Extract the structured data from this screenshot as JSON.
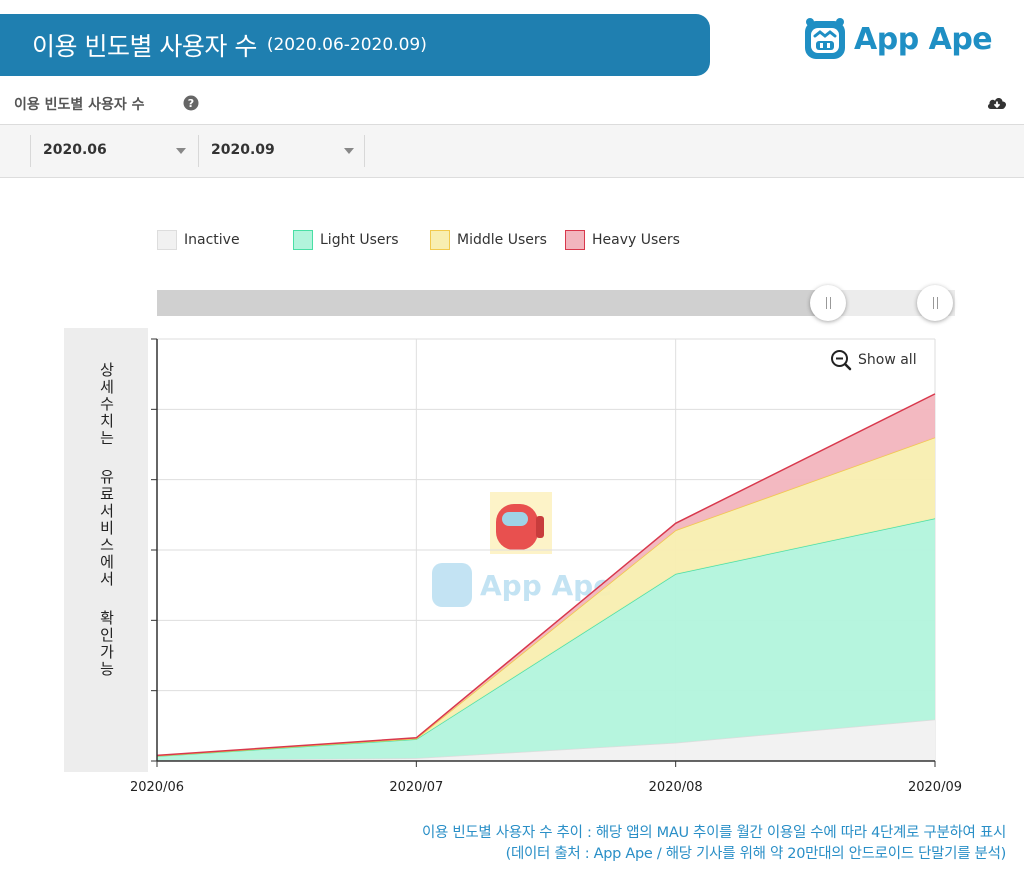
{
  "banner": {
    "title": "이용 빈도별 사용자 수",
    "period": "(2020.06-2020.09)",
    "brand_text": "App Ape",
    "colors": {
      "banner": "#1f7fb0",
      "brand": "#1f8fc4"
    }
  },
  "section": {
    "title": "이용 빈도별 사용자 수",
    "help_icon": "question-circle-icon",
    "download_icon": "cloud-download-icon"
  },
  "filters": {
    "start_month": "2020.06",
    "end_month": "2020.09"
  },
  "side_note": {
    "lines": [
      "상세수치는",
      "유료서비스에서",
      "확인가능"
    ]
  },
  "show_all_label": "Show all",
  "chart_data": {
    "type": "area",
    "stacked": true,
    "categories": [
      "2020/06",
      "2020/07",
      "2020/08",
      "2020/09"
    ],
    "series": [
      {
        "name": "Inactive",
        "values": [
          1,
          4,
          26,
          59
        ],
        "color": "#f1f1f1",
        "stroke": "#dddddd"
      },
      {
        "name": "Light Users",
        "values": [
          6,
          27,
          240,
          286
        ],
        "color": "#b2f4dc",
        "stroke": "#49dfa5"
      },
      {
        "name": "Middle Users",
        "values": [
          0.5,
          1,
          62,
          115
        ],
        "color": "#f8eeb0",
        "stroke": "#f2c94c"
      },
      {
        "name": "Heavy Users",
        "values": [
          0.5,
          1,
          10,
          62
        ],
        "color": "#f2b5be",
        "stroke": "#d8384c"
      }
    ],
    "ylim": [
      0,
      600
    ],
    "y_ticks": [
      0,
      100,
      200,
      300,
      400,
      500,
      600
    ],
    "y_tick_labels_visible": false,
    "grid": true,
    "legend": "top-left"
  },
  "caption": {
    "line1": "이용 빈도별 사용자 수 추이 : 해당 앱의 MAU 추이를 월간 이용일 수에 따라 4단계로 구분하여 표시",
    "line2": "(데이터 출처 : App Ape / 해당 기사를 위해 약 20만대의 안드로이드 단말기를 분석)"
  },
  "watermark": {
    "text": "App Ape",
    "color": "#bde1f2"
  }
}
